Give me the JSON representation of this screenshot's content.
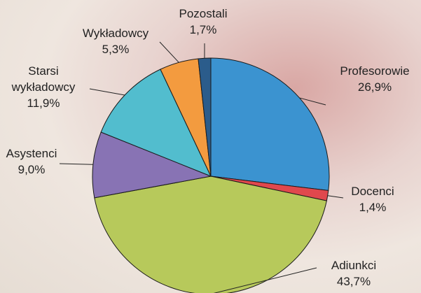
{
  "chart_data": {
    "type": "pie",
    "categories": [
      "Profesorowie",
      "Docenci",
      "Adiunkci",
      "Asystenci",
      "Starsi\nwykładowcy",
      "Wykładowcy",
      "Pozostali"
    ],
    "values": [
      26.9,
      1.4,
      43.7,
      9.0,
      11.9,
      5.3,
      1.7
    ],
    "value_labels": [
      "26,9%",
      "1,4%",
      "43,7%",
      "9,0%",
      "11,9%",
      "5,3%",
      "1,7%"
    ],
    "colors": [
      "#3b93d0",
      "#e0484d",
      "#b7c95b",
      "#8873b4",
      "#52bdce",
      "#f39b3f",
      "#2b5c8b"
    ]
  }
}
